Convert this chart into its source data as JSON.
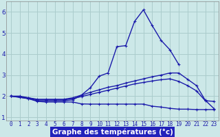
{
  "x": [
    0,
    1,
    2,
    3,
    4,
    5,
    6,
    7,
    8,
    9,
    10,
    11,
    12,
    13,
    14,
    15,
    16,
    17,
    18,
    19,
    20,
    21,
    22,
    23
  ],
  "line_peak": [
    2.0,
    1.95,
    1.88,
    1.78,
    1.78,
    1.78,
    1.78,
    1.82,
    2.05,
    2.4,
    2.95,
    3.1,
    4.35,
    4.4,
    5.55,
    6.1,
    5.35,
    4.65,
    4.2,
    3.5,
    null,
    null,
    null,
    null
  ],
  "line_upper": [
    2.0,
    2.0,
    1.92,
    1.85,
    1.85,
    1.85,
    1.85,
    1.92,
    2.05,
    2.18,
    2.3,
    2.42,
    2.5,
    2.62,
    2.72,
    2.82,
    2.92,
    3.0,
    3.1,
    3.1,
    2.8,
    2.5,
    1.8,
    1.4
  ],
  "line_mid": [
    2.0,
    null,
    1.92,
    1.82,
    1.82,
    1.82,
    1.82,
    1.88,
    1.98,
    2.08,
    2.18,
    2.28,
    2.38,
    2.48,
    2.58,
    2.65,
    2.72,
    2.78,
    2.82,
    2.7,
    2.5,
    2.25,
    1.78,
    1.75
  ],
  "line_low": [
    2.0,
    null,
    1.88,
    1.75,
    1.72,
    1.72,
    1.72,
    1.72,
    1.63,
    1.62,
    1.62,
    1.62,
    1.62,
    1.62,
    1.62,
    1.62,
    1.52,
    1.48,
    1.42,
    1.38,
    1.38,
    1.36,
    1.36,
    1.36
  ],
  "background_color": "#cce8e8",
  "grid_color": "#aacccc",
  "line_color": "#1a1aaa",
  "xlabel": "Graphe des températures (°c)",
  "xlabel_bg": "#2222bb",
  "ylim": [
    0.85,
    6.5
  ],
  "xlim": [
    -0.5,
    23.5
  ],
  "yticks": [
    1,
    2,
    3,
    4,
    5,
    6
  ],
  "xticks": [
    0,
    1,
    2,
    3,
    4,
    5,
    6,
    7,
    8,
    9,
    10,
    11,
    12,
    13,
    14,
    15,
    16,
    17,
    18,
    19,
    20,
    21,
    22,
    23
  ],
  "markersize": 3,
  "linewidth": 1.0
}
